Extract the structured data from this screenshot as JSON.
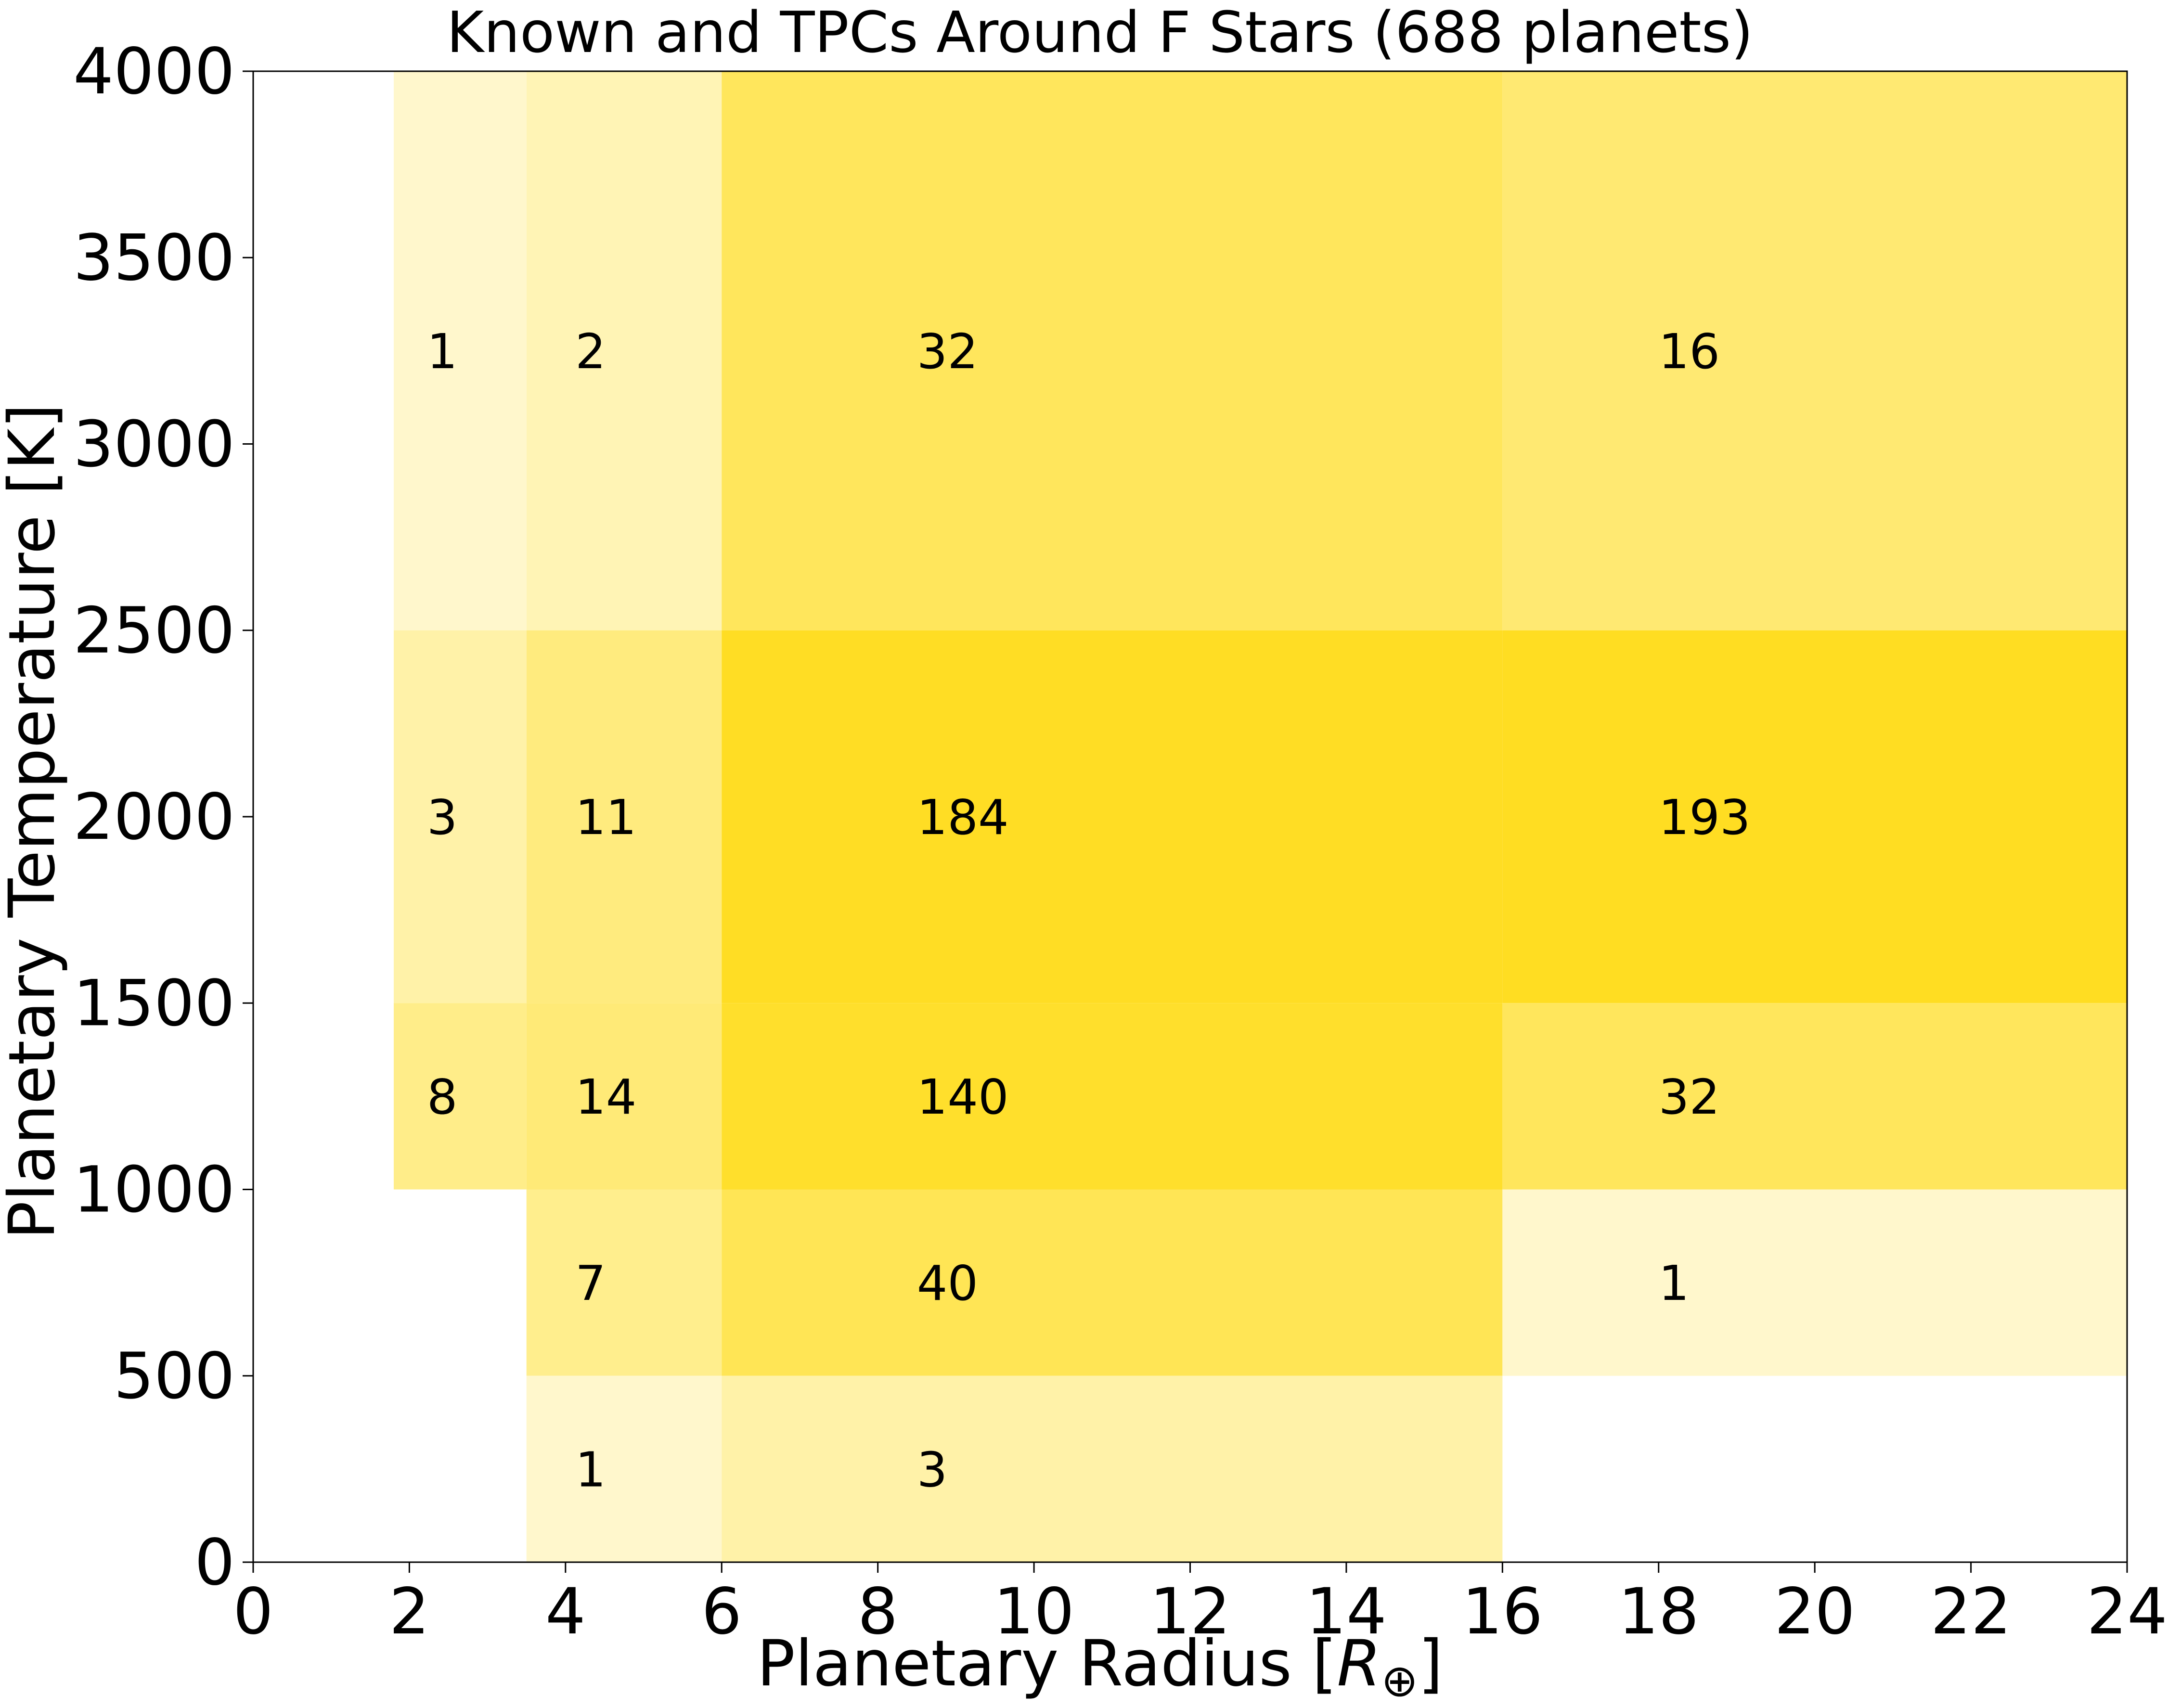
{
  "chart_data": {
    "type": "heatmap",
    "title": "Known and TPCs Around F Stars (688 planets)",
    "xlabel_text": "Planetary Radius [",
    "xlabel_symbol": "R",
    "xlabel_subscript": "⊕",
    "xlabel_close": "]",
    "ylabel": "Planetary Temperature [K]",
    "xlim": [
      0,
      24
    ],
    "ylim": [
      0,
      4000
    ],
    "xticks": [
      0,
      2,
      4,
      6,
      8,
      10,
      12,
      14,
      16,
      18,
      20,
      22,
      24
    ],
    "yticks": [
      0,
      500,
      1000,
      1500,
      2000,
      2500,
      3000,
      3500,
      4000
    ],
    "x_bin_edges": [
      1.8,
      3.5,
      6,
      16,
      24
    ],
    "y_bin_edges": [
      0,
      500,
      1000,
      1500,
      2500,
      4000
    ],
    "cells": [
      {
        "x_bin": 0,
        "y_bin": 4,
        "count": 1
      },
      {
        "x_bin": 1,
        "y_bin": 4,
        "count": 2
      },
      {
        "x_bin": 2,
        "y_bin": 4,
        "count": 32
      },
      {
        "x_bin": 3,
        "y_bin": 4,
        "count": 16
      },
      {
        "x_bin": 0,
        "y_bin": 3,
        "count": 3
      },
      {
        "x_bin": 1,
        "y_bin": 3,
        "count": 11
      },
      {
        "x_bin": 2,
        "y_bin": 3,
        "count": 184
      },
      {
        "x_bin": 3,
        "y_bin": 3,
        "count": 193
      },
      {
        "x_bin": 0,
        "y_bin": 2,
        "count": 8
      },
      {
        "x_bin": 1,
        "y_bin": 2,
        "count": 14
      },
      {
        "x_bin": 2,
        "y_bin": 2,
        "count": 140
      },
      {
        "x_bin": 3,
        "y_bin": 2,
        "count": 32
      },
      {
        "x_bin": 1,
        "y_bin": 1,
        "count": 7
      },
      {
        "x_bin": 2,
        "y_bin": 1,
        "count": 40
      },
      {
        "x_bin": 3,
        "y_bin": 1,
        "count": 1
      },
      {
        "x_bin": 1,
        "y_bin": 0,
        "count": 1
      },
      {
        "x_bin": 2,
        "y_bin": 0,
        "count": 3
      }
    ],
    "colors": {
      "cmap_low": "#fffbe3",
      "cmap_high": "#ffdd22",
      "axes": "#000000",
      "background": "#ffffff"
    },
    "grid": false
  }
}
